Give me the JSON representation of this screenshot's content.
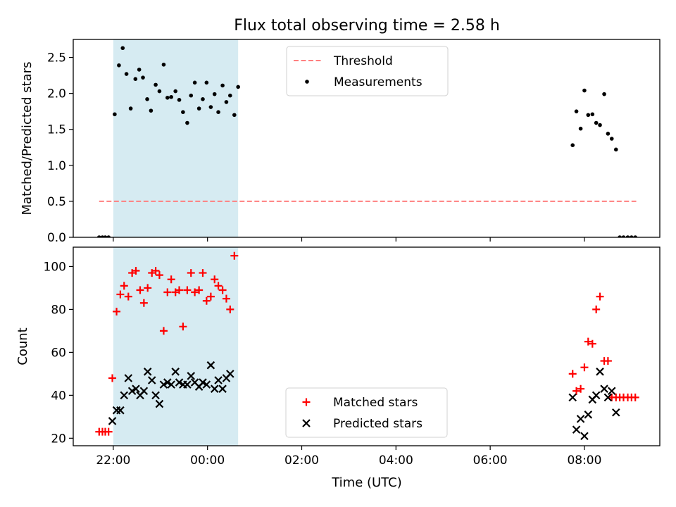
{
  "chart_data": {
    "title": "Flux total observing time = 2.58 h",
    "xlabel": "Time (UTC)",
    "x_unit": "hours since 00:00 UTC (negative = previous evening)",
    "xlim": [
      -2.85,
      9.6
    ],
    "x_ticks": [
      {
        "x": -2,
        "label": "22:00"
      },
      {
        "x": 0,
        "label": "00:00"
      },
      {
        "x": 2,
        "label": "02:00"
      },
      {
        "x": 4,
        "label": "04:00"
      },
      {
        "x": 6,
        "label": "06:00"
      },
      {
        "x": 8,
        "label": "08:00"
      }
    ],
    "shaded_span": {
      "x0": -2.0,
      "x1": 0.65,
      "color": "#add8e6"
    },
    "panels": [
      {
        "id": "ratio",
        "type": "scatter",
        "ylabel": "Matched/Predicted stars",
        "ylim": [
          0,
          2.75
        ],
        "y_ticks": [
          0.0,
          0.5,
          1.0,
          1.5,
          2.0,
          2.5
        ],
        "y_tick_labels": [
          "0.0",
          "0.5",
          "1.0",
          "1.5",
          "2.0",
          "2.5"
        ],
        "legend_position": "upper-center",
        "lines": [
          {
            "name": "Threshold",
            "x": [
              -2.3,
              9.1
            ],
            "y": [
              0.5,
              0.5
            ],
            "color": "#ff7f7f",
            "dash": true
          }
        ],
        "series": [
          {
            "name": "Measurements",
            "marker": "dot",
            "color": "#000000",
            "points": [
              [
                -2.3,
                0
              ],
              [
                -2.23,
                0
              ],
              [
                -2.17,
                0
              ],
              [
                -2.1,
                0
              ],
              [
                -1.97,
                1.71
              ],
              [
                -1.88,
                2.39
              ],
              [
                -1.8,
                2.63
              ],
              [
                -1.72,
                2.27
              ],
              [
                -1.63,
                1.79
              ],
              [
                -1.53,
                2.2
              ],
              [
                -1.45,
                2.33
              ],
              [
                -1.37,
                2.22
              ],
              [
                -1.28,
                1.92
              ],
              [
                -1.2,
                1.76
              ],
              [
                -1.1,
                2.12
              ],
              [
                -1.02,
                2.03
              ],
              [
                -0.93,
                2.4
              ],
              [
                -0.85,
                1.94
              ],
              [
                -0.77,
                1.95
              ],
              [
                -0.68,
                2.03
              ],
              [
                -0.6,
                1.91
              ],
              [
                -0.52,
                1.74
              ],
              [
                -0.43,
                1.59
              ],
              [
                -0.35,
                1.97
              ],
              [
                -0.27,
                2.15
              ],
              [
                -0.18,
                1.79
              ],
              [
                -0.1,
                1.92
              ],
              [
                -0.02,
                2.15
              ],
              [
                0.07,
                1.81
              ],
              [
                0.15,
                1.99
              ],
              [
                0.23,
                1.74
              ],
              [
                0.32,
                2.11
              ],
              [
                0.4,
                1.88
              ],
              [
                0.48,
                1.97
              ],
              [
                0.57,
                1.7
              ],
              [
                0.65,
                2.09
              ],
              [
                7.75,
                1.28
              ],
              [
                7.83,
                1.75
              ],
              [
                7.92,
                1.51
              ],
              [
                8.0,
                2.04
              ],
              [
                8.08,
                1.7
              ],
              [
                8.17,
                1.71
              ],
              [
                8.25,
                1.59
              ],
              [
                8.33,
                1.56
              ],
              [
                8.42,
                1.99
              ],
              [
                8.5,
                1.44
              ],
              [
                8.58,
                1.37
              ],
              [
                8.67,
                1.22
              ],
              [
                8.75,
                0
              ],
              [
                8.83,
                0
              ],
              [
                8.92,
                0
              ],
              [
                9.0,
                0
              ],
              [
                9.08,
                0
              ]
            ]
          }
        ]
      },
      {
        "id": "count",
        "type": "scatter",
        "ylabel": "Count",
        "ylim": [
          16.5,
          109
        ],
        "y_ticks": [
          20,
          40,
          60,
          80,
          100
        ],
        "y_tick_labels": [
          "20",
          "40",
          "60",
          "80",
          "100"
        ],
        "legend_position": "lower-center",
        "series": [
          {
            "name": "Matched stars",
            "marker": "plus",
            "color": "#ff0000",
            "points": [
              [
                -2.3,
                23
              ],
              [
                -2.23,
                23
              ],
              [
                -2.17,
                23
              ],
              [
                -2.1,
                23
              ],
              [
                -2.02,
                48
              ],
              [
                -1.93,
                79
              ],
              [
                -1.85,
                87
              ],
              [
                -1.77,
                91
              ],
              [
                -1.68,
                86
              ],
              [
                -1.6,
                97
              ],
              [
                -1.52,
                98
              ],
              [
                -1.43,
                89
              ],
              [
                -1.35,
                83
              ],
              [
                -1.27,
                90
              ],
              [
                -1.18,
                97
              ],
              [
                -1.1,
                98
              ],
              [
                -1.02,
                96
              ],
              [
                -0.93,
                70
              ],
              [
                -0.85,
                88
              ],
              [
                -0.77,
                94
              ],
              [
                -0.68,
                88
              ],
              [
                -0.6,
                89
              ],
              [
                -0.52,
                72
              ],
              [
                -0.43,
                89
              ],
              [
                -0.35,
                97
              ],
              [
                -0.27,
                88
              ],
              [
                -0.18,
                89
              ],
              [
                -0.1,
                97
              ],
              [
                -0.02,
                84
              ],
              [
                0.07,
                86
              ],
              [
                0.15,
                94
              ],
              [
                0.23,
                91
              ],
              [
                0.32,
                89
              ],
              [
                0.4,
                85
              ],
              [
                0.48,
                80
              ],
              [
                0.57,
                105
              ],
              [
                7.75,
                50
              ],
              [
                7.83,
                42
              ],
              [
                7.92,
                43
              ],
              [
                8.0,
                53
              ],
              [
                8.08,
                65
              ],
              [
                8.17,
                64
              ],
              [
                8.25,
                80
              ],
              [
                8.33,
                86
              ],
              [
                8.42,
                56
              ],
              [
                8.5,
                56
              ],
              [
                8.58,
                39
              ],
              [
                8.67,
                39
              ],
              [
                8.75,
                39
              ],
              [
                8.83,
                39
              ],
              [
                8.92,
                39
              ],
              [
                9.0,
                39
              ],
              [
                9.08,
                39
              ]
            ]
          },
          {
            "name": "Predicted stars",
            "marker": "cross",
            "color": "#000000",
            "points": [
              [
                -2.02,
                28
              ],
              [
                -1.93,
                33
              ],
              [
                -1.85,
                33
              ],
              [
                -1.77,
                40
              ],
              [
                -1.68,
                48
              ],
              [
                -1.6,
                42
              ],
              [
                -1.52,
                43
              ],
              [
                -1.43,
                40
              ],
              [
                -1.35,
                42
              ],
              [
                -1.27,
                51
              ],
              [
                -1.18,
                47
              ],
              [
                -1.1,
                40
              ],
              [
                -1.02,
                36
              ],
              [
                -0.93,
                45
              ],
              [
                -0.85,
                46
              ],
              [
                -0.77,
                45
              ],
              [
                -0.68,
                51
              ],
              [
                -0.6,
                46
              ],
              [
                -0.52,
                45
              ],
              [
                -0.43,
                45
              ],
              [
                -0.35,
                49
              ],
              [
                -0.27,
                46
              ],
              [
                -0.18,
                44
              ],
              [
                -0.1,
                46
              ],
              [
                -0.02,
                45
              ],
              [
                0.07,
                54
              ],
              [
                0.15,
                43
              ],
              [
                0.23,
                47
              ],
              [
                0.32,
                43
              ],
              [
                0.4,
                48
              ],
              [
                0.48,
                50
              ],
              [
                7.75,
                39
              ],
              [
                7.83,
                24
              ],
              [
                7.92,
                29
              ],
              [
                8.0,
                21
              ],
              [
                8.08,
                31
              ],
              [
                8.17,
                38
              ],
              [
                8.25,
                40
              ],
              [
                8.33,
                51
              ],
              [
                8.42,
                43
              ],
              [
                8.5,
                39
              ],
              [
                8.58,
                42
              ],
              [
                8.67,
                32
              ]
            ]
          }
        ]
      }
    ]
  }
}
